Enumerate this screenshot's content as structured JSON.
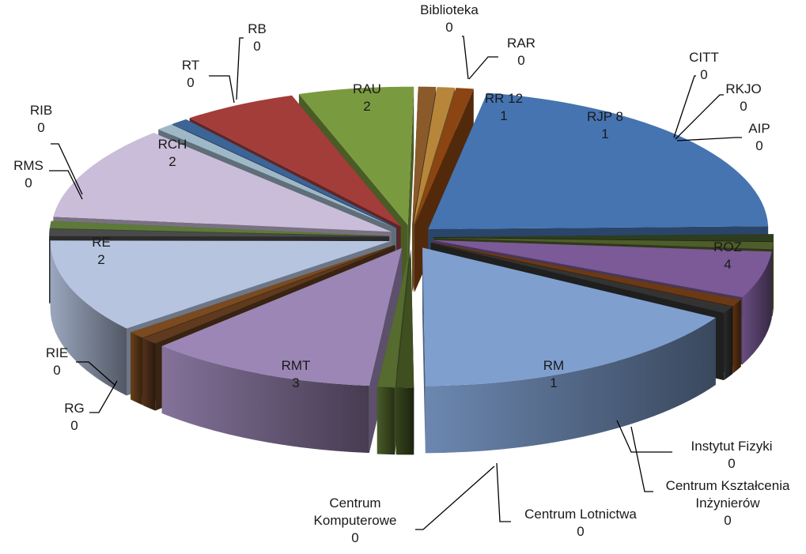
{
  "chart_data": {
    "type": "pie",
    "title": "",
    "variant": "3d-exploded",
    "slices": [
      {
        "name": "ROZ",
        "value": 4,
        "color": "#4574b0"
      },
      {
        "name": "Instytut Fizyki",
        "value": 0,
        "color": "#2e3d1e"
      },
      {
        "name": "Centrum Kształcenia Inżynierów",
        "value": 0,
        "color": "#4f5d2a"
      },
      {
        "name": "RM",
        "value": 1,
        "color": "#7b5a97"
      },
      {
        "name": "Centrum Lotnictwa",
        "value": 0,
        "color": "#6b3a14"
      },
      {
        "name": "Centrum Komputerowe",
        "value": 0,
        "color": "#333333"
      },
      {
        "name": "RMT",
        "value": 3,
        "color": "#7f9fcf"
      },
      {
        "name": "RG",
        "value": 0,
        "color": "#3f4f20"
      },
      {
        "name": "RIE",
        "value": 0,
        "color": "#556b2f"
      },
      {
        "name": "RE",
        "value": 2,
        "color": "#9b86b5"
      },
      {
        "name": "RMS",
        "value": 0,
        "color": "#5f3a1e"
      },
      {
        "name": "RIB",
        "value": 0,
        "color": "#7a4a20"
      },
      {
        "name": "RCH",
        "value": 2,
        "color": "#b6c4e0"
      },
      {
        "name": "RT",
        "value": 0,
        "color": "#4a4a4a"
      },
      {
        "name": "RB",
        "value": 0,
        "color": "#5e7a3a"
      },
      {
        "name": "RAU",
        "value": 2,
        "color": "#c9bdd9"
      },
      {
        "name": "Biblioteka",
        "value": 0,
        "color": "#9fb8c8"
      },
      {
        "name": "RAR",
        "value": 0,
        "color": "#3c6496"
      },
      {
        "name": "RR 12",
        "value": 1,
        "color": "#a33d3a"
      },
      {
        "name": "RJP 8",
        "value": 1,
        "color": "#7a9a3f"
      },
      {
        "name": "CITT",
        "value": 0,
        "color": "#8a5a2a"
      },
      {
        "name": "RKJO",
        "value": 0,
        "color": "#b8863a"
      },
      {
        "name": "AIP",
        "value": 0,
        "color": "#8b4513"
      }
    ]
  }
}
